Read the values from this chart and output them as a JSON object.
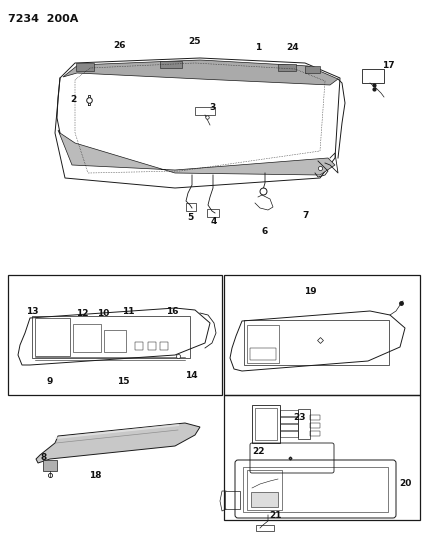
{
  "title_code": "7234  200A",
  "bg_color": "#ffffff",
  "line_color": "#1a1a1a",
  "label_color": "#111111",
  "font_size_code": 8,
  "font_size_label": 6.5
}
